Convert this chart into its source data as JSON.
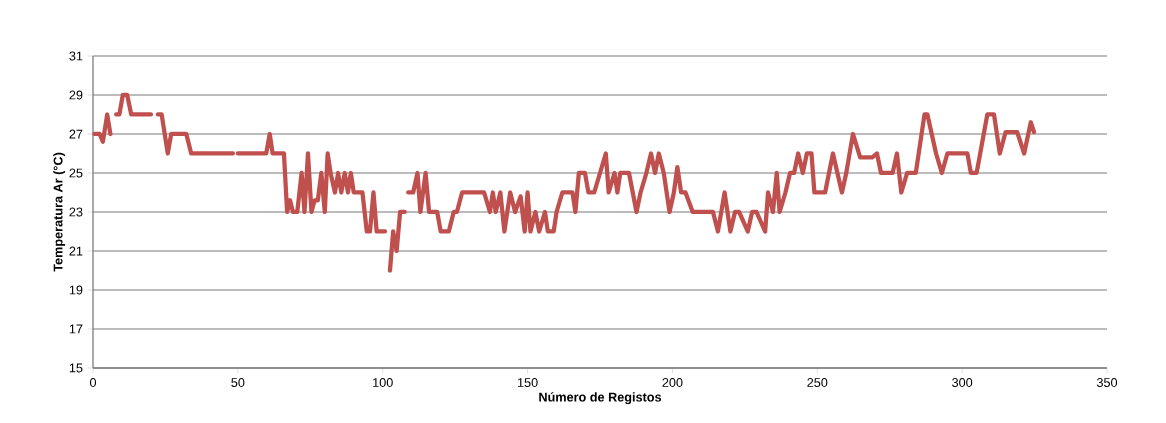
{
  "chart_data": {
    "type": "line",
    "xlabel": "Número de Registos",
    "ylabel": "Temperatura Ar (°C)",
    "x": [
      0.5,
      2.3,
      3.4,
      4.9,
      6,
      7,
      8,
      9.1,
      10.3,
      11.8,
      13.2,
      20,
      21,
      22.4,
      23.7,
      25.8,
      27,
      32.2,
      33.9,
      48.3,
      49,
      50,
      59.8,
      61,
      62,
      65.9,
      67,
      68,
      69,
      70.5,
      72,
      73,
      74.2,
      75.4,
      76.5,
      77.6,
      78.8,
      80,
      81,
      82,
      83.5,
      84.6,
      85.7,
      86.9,
      88,
      89,
      90,
      93,
      94.5,
      95.6,
      96.8,
      97.9,
      100.8,
      101.5,
      102.5,
      103.6,
      104.8,
      106,
      107.6,
      108.2,
      108.8,
      110.5,
      112,
      113,
      114.8,
      116,
      118.8,
      120,
      122.8,
      124.5,
      125.6,
      127.4,
      131.3,
      135,
      137,
      138,
      139,
      140.6,
      142,
      144,
      145.7,
      147.6,
      149,
      150,
      151,
      152.7,
      154,
      156,
      157,
      159,
      160,
      162,
      165.5,
      166.5,
      167.7,
      169.8,
      171,
      173,
      177,
      178,
      180,
      181,
      182,
      185,
      187.6,
      189,
      191,
      192.6,
      194,
      195.3,
      197,
      199,
      200.5,
      201.7,
      203,
      204.5,
      207,
      214,
      215.7,
      218,
      220,
      221.6,
      223,
      226,
      227.5,
      229,
      232,
      233,
      234.7,
      236,
      237,
      239,
      240.6,
      242,
      243.4,
      245,
      246.4,
      248,
      249,
      252.7,
      255.4,
      258.5,
      260,
      262.3,
      264.8,
      269,
      270.6,
      272,
      276,
      277.5,
      279,
      281,
      284,
      287,
      288,
      291,
      293,
      294.9,
      301.8,
      303,
      305,
      308.7,
      311,
      313,
      315,
      319,
      321.4,
      323.7,
      324.8
    ],
    "values": [
      27,
      27,
      26.6,
      28,
      27,
      null,
      28,
      28,
      29,
      29,
      28,
      28,
      null,
      28,
      28,
      26,
      27,
      27,
      26,
      26,
      null,
      26,
      26,
      27,
      26,
      26,
      23,
      23.6,
      23,
      23,
      25,
      23,
      26,
      23,
      23.6,
      23.6,
      25,
      23,
      26,
      25,
      24,
      25,
      24,
      25,
      24,
      25,
      24,
      24,
      22,
      22,
      24,
      22,
      22,
      null,
      20,
      22,
      21,
      23,
      23,
      null,
      24,
      24,
      25,
      23,
      25,
      23,
      23,
      22,
      22,
      23,
      23,
      24,
      24,
      24,
      23,
      24,
      23,
      24,
      22,
      24,
      23,
      23.8,
      22,
      24,
      22,
      23,
      22,
      23,
      22,
      22,
      23,
      24,
      24,
      23,
      25,
      25,
      24,
      24,
      26,
      24,
      25,
      24,
      25,
      25,
      23,
      24,
      25,
      26,
      25,
      26,
      25,
      23,
      24,
      25.3,
      24,
      24,
      23,
      23,
      22,
      24,
      22,
      23,
      23,
      22,
      23,
      23,
      22,
      24,
      23,
      25,
      23,
      24,
      25,
      25,
      26,
      25,
      26,
      26,
      24,
      24,
      26,
      24,
      25,
      27,
      25.8,
      25.8,
      26,
      25,
      25,
      26,
      24,
      25,
      25,
      28,
      28,
      26,
      25,
      26,
      26,
      25,
      25,
      28,
      28,
      26,
      27.1,
      27.1,
      26,
      27.6,
      27.1
    ],
    "color": "#c0504d",
    "line_style": "solid",
    "marker": "none",
    "xlim": [
      0,
      350
    ],
    "xticks": [
      0,
      50,
      100,
      150,
      200,
      250,
      300,
      350
    ],
    "ylim": [
      15,
      31
    ],
    "yticks": [
      15,
      17,
      19,
      21,
      23,
      25,
      27,
      29,
      31
    ],
    "grid": "y"
  }
}
